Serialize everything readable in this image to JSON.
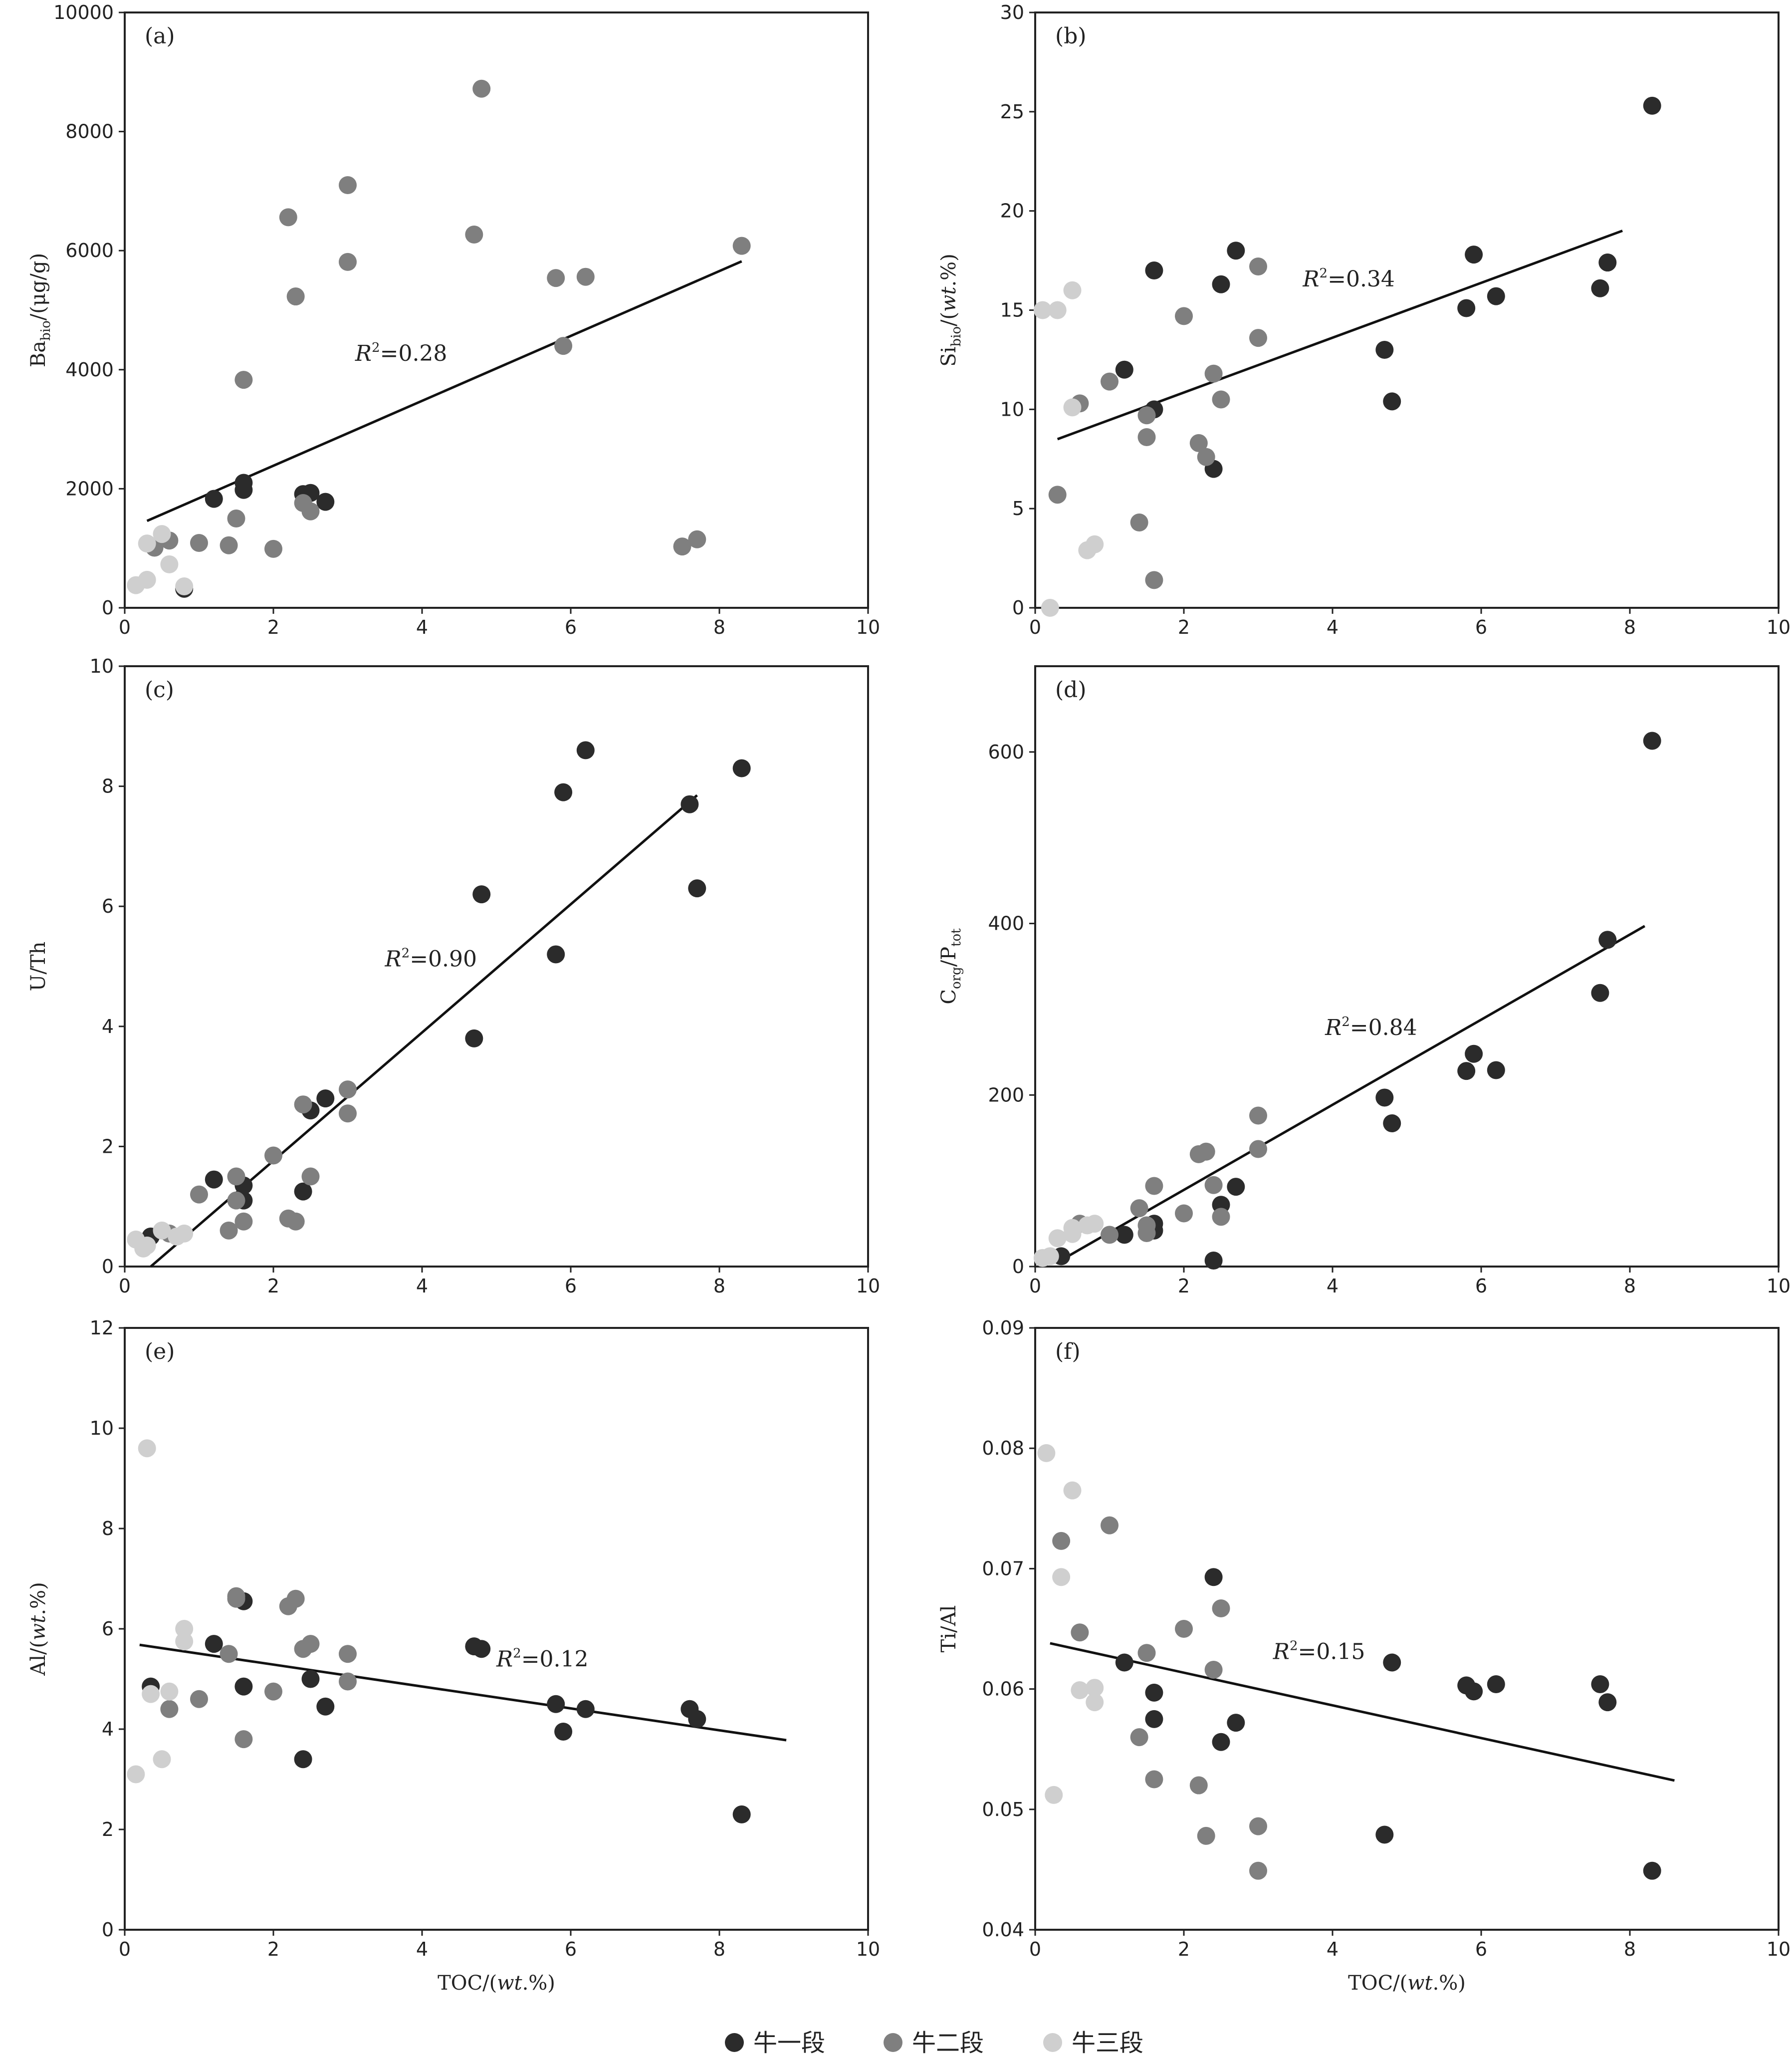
{
  "colors": {
    "牛一段": "#2b2b2b",
    "牛二段": "#7f7f7f",
    "牛三段": "#cfcfcf"
  },
  "legend": [
    "牛一段",
    "牛二段",
    "牛三段"
  ],
  "chart_data": [
    {
      "type": "scatter",
      "panel": "(a)",
      "xlabel": "TOC/(wt.%)",
      "ylabel": "Babio/(μg/g)",
      "xlim": [
        0,
        10
      ],
      "ylim": [
        0,
        10000
      ],
      "xticks": [
        0,
        2,
        4,
        6,
        8,
        10
      ],
      "yticks": [
        0,
        2000,
        4000,
        6000,
        8000,
        10000
      ],
      "r2": "R²=0.28",
      "r2_pos": [
        3.1,
        4150
      ],
      "fit": [
        [
          0.3,
          1460
        ],
        [
          8.3,
          5820
        ]
      ],
      "series": [
        {
          "name": "牛一段",
          "points": [
            [
              1.2,
              1830
            ],
            [
              1.6,
              2100
            ],
            [
              1.6,
              1980
            ],
            [
              2.4,
              1910
            ],
            [
              2.5,
              1930
            ],
            [
              2.7,
              1780
            ],
            [
              0.8,
              320
            ]
          ]
        },
        {
          "name": "牛二段",
          "points": [
            [
              4.8,
              8720
            ],
            [
              3.0,
              7100
            ],
            [
              2.2,
              6560
            ],
            [
              4.7,
              6270
            ],
            [
              8.3,
              6080
            ],
            [
              3.0,
              5810
            ],
            [
              5.8,
              5540
            ],
            [
              6.2,
              5560
            ],
            [
              2.3,
              5230
            ],
            [
              5.9,
              4400
            ],
            [
              1.6,
              3830
            ],
            [
              2.4,
              1760
            ],
            [
              2.5,
              1620
            ],
            [
              1.5,
              1500
            ],
            [
              1.4,
              1050
            ],
            [
              1.0,
              1090
            ],
            [
              0.6,
              1130
            ],
            [
              0.4,
              1010
            ],
            [
              2.0,
              990
            ],
            [
              7.5,
              1030
            ],
            [
              7.7,
              1150
            ]
          ]
        },
        {
          "name": "牛三段",
          "points": [
            [
              0.5,
              1240
            ],
            [
              0.3,
              1080
            ],
            [
              0.6,
              730
            ],
            [
              0.3,
              470
            ],
            [
              0.15,
              380
            ],
            [
              0.8,
              360
            ]
          ]
        }
      ]
    },
    {
      "type": "scatter",
      "panel": "(b)",
      "xlabel": "TOC/(wt.%)",
      "ylabel": "Sibio/(wt.%)",
      "xlim": [
        0,
        10
      ],
      "ylim": [
        0,
        30
      ],
      "xticks": [
        0,
        2,
        4,
        6,
        8,
        10
      ],
      "yticks": [
        0,
        5,
        10,
        15,
        20,
        25,
        30
      ],
      "r2": "R²=0.34",
      "r2_pos": [
        3.6,
        16.2
      ],
      "fit": [
        [
          0.3,
          8.5
        ],
        [
          7.9,
          19.0
        ]
      ],
      "series": [
        {
          "name": "牛一段",
          "points": [
            [
              8.3,
              25.3
            ],
            [
              2.7,
              18.0
            ],
            [
              5.9,
              17.8
            ],
            [
              7.7,
              17.4
            ],
            [
              1.6,
              17.0
            ],
            [
              2.5,
              16.3
            ],
            [
              7.6,
              16.1
            ],
            [
              6.2,
              15.7
            ],
            [
              5.8,
              15.1
            ],
            [
              4.7,
              13.0
            ],
            [
              1.2,
              12.0
            ],
            [
              4.8,
              10.4
            ],
            [
              1.6,
              10.0
            ],
            [
              2.4,
              7.0
            ]
          ]
        },
        {
          "name": "牛二段",
          "points": [
            [
              3.0,
              17.2
            ],
            [
              2.0,
              14.7
            ],
            [
              3.0,
              13.6
            ],
            [
              2.4,
              11.8
            ],
            [
              1.0,
              11.4
            ],
            [
              2.5,
              10.5
            ],
            [
              0.6,
              10.3
            ],
            [
              1.5,
              9.7
            ],
            [
              1.5,
              8.6
            ],
            [
              2.2,
              8.3
            ],
            [
              2.3,
              7.6
            ],
            [
              0.3,
              5.7
            ],
            [
              1.4,
              4.3
            ],
            [
              1.6,
              1.4
            ]
          ]
        },
        {
          "name": "牛三段",
          "points": [
            [
              0.5,
              16.0
            ],
            [
              0.1,
              15.0
            ],
            [
              0.3,
              15.0
            ],
            [
              0.5,
              10.1
            ],
            [
              0.8,
              3.2
            ],
            [
              0.7,
              2.9
            ],
            [
              0.2,
              0.0
            ]
          ]
        }
      ]
    },
    {
      "type": "scatter",
      "panel": "(c)",
      "xlabel": "TOC/(wt.%)",
      "ylabel": "U/Th",
      "xlim": [
        0,
        10
      ],
      "ylim": [
        0,
        10
      ],
      "xticks": [
        0,
        2,
        4,
        6,
        8,
        10
      ],
      "yticks": [
        0,
        2,
        4,
        6,
        8,
        10
      ],
      "r2": "R²=0.90",
      "r2_pos": [
        3.5,
        5.0
      ],
      "fit": [
        [
          0.35,
          0.0
        ],
        [
          7.7,
          7.85
        ]
      ],
      "series": [
        {
          "name": "牛一段",
          "points": [
            [
              6.2,
              8.6
            ],
            [
              8.3,
              8.3
            ],
            [
              5.9,
              7.9
            ],
            [
              7.6,
              7.7
            ],
            [
              7.7,
              6.3
            ],
            [
              4.8,
              6.2
            ],
            [
              5.8,
              5.2
            ],
            [
              4.7,
              3.8
            ],
            [
              2.7,
              2.8
            ],
            [
              2.5,
              2.6
            ],
            [
              1.2,
              1.45
            ],
            [
              1.6,
              1.35
            ],
            [
              1.6,
              1.1
            ],
            [
              2.4,
              1.25
            ],
            [
              0.35,
              0.5
            ]
          ]
        },
        {
          "name": "牛二段",
          "points": [
            [
              3.0,
              2.95
            ],
            [
              2.4,
              2.7
            ],
            [
              3.0,
              2.55
            ],
            [
              2.0,
              1.85
            ],
            [
              1.5,
              1.5
            ],
            [
              2.5,
              1.5
            ],
            [
              1.0,
              1.2
            ],
            [
              1.5,
              1.1
            ],
            [
              1.6,
              0.75
            ],
            [
              2.2,
              0.8
            ],
            [
              2.3,
              0.75
            ],
            [
              1.4,
              0.6
            ],
            [
              0.6,
              0.55
            ]
          ]
        },
        {
          "name": "牛三段",
          "points": [
            [
              0.15,
              0.45
            ],
            [
              0.5,
              0.6
            ],
            [
              0.8,
              0.55
            ],
            [
              0.7,
              0.5
            ],
            [
              0.3,
              0.35
            ],
            [
              0.25,
              0.3
            ]
          ]
        }
      ]
    },
    {
      "type": "scatter",
      "panel": "(d)",
      "xlabel": "TOC/(wt.%)",
      "ylabel": "Corg/Ptot",
      "xlim": [
        0,
        10
      ],
      "ylim": [
        0,
        700
      ],
      "xticks": [
        0,
        2,
        4,
        6,
        8,
        10
      ],
      "yticks": [
        0,
        200,
        400,
        600
      ],
      "r2": "R²=0.84",
      "r2_pos": [
        3.9,
        270
      ],
      "fit": [
        [
          0.3,
          5
        ],
        [
          8.2,
          397
        ]
      ],
      "series": [
        {
          "name": "牛一段",
          "points": [
            [
              8.3,
              613
            ],
            [
              7.7,
              381
            ],
            [
              7.6,
              319
            ],
            [
              5.9,
              248
            ],
            [
              5.8,
              228
            ],
            [
              6.2,
              229
            ],
            [
              4.7,
              197
            ],
            [
              4.8,
              167
            ],
            [
              2.7,
              93
            ],
            [
              2.5,
              72
            ],
            [
              1.6,
              50
            ],
            [
              1.6,
              42
            ],
            [
              1.2,
              37
            ],
            [
              0.35,
              12
            ],
            [
              2.4,
              7
            ]
          ]
        },
        {
          "name": "牛二段",
          "points": [
            [
              3.0,
              176
            ],
            [
              3.0,
              137
            ],
            [
              2.3,
              134
            ],
            [
              2.2,
              131
            ],
            [
              1.6,
              94
            ],
            [
              2.4,
              95
            ],
            [
              1.4,
              68
            ],
            [
              2.0,
              62
            ],
            [
              2.5,
              58
            ],
            [
              1.5,
              48
            ],
            [
              1.5,
              39
            ],
            [
              1.0,
              37
            ],
            [
              0.6,
              50
            ]
          ]
        },
        {
          "name": "牛三段",
          "points": [
            [
              0.8,
              50
            ],
            [
              0.7,
              48
            ],
            [
              0.5,
              45
            ],
            [
              0.5,
              38
            ],
            [
              0.3,
              33
            ],
            [
              0.2,
              12
            ],
            [
              0.1,
              10
            ]
          ]
        }
      ]
    },
    {
      "type": "scatter",
      "panel": "(e)",
      "xlabel": "TOC/(wt.%)",
      "ylabel": "Al/(wt.%)",
      "xlim": [
        0,
        10
      ],
      "ylim": [
        0,
        12
      ],
      "xticks": [
        0,
        2,
        4,
        6,
        8,
        10
      ],
      "yticks": [
        0,
        2,
        4,
        6,
        8,
        10,
        12
      ],
      "r2": "R²=0.12",
      "r2_pos": [
        5.0,
        5.25
      ],
      "fit": [
        [
          0.2,
          5.68
        ],
        [
          8.9,
          3.78
        ]
      ],
      "series": [
        {
          "name": "牛一段",
          "points": [
            [
              1.2,
              5.7
            ],
            [
              1.6,
              6.55
            ],
            [
              4.7,
              5.65
            ],
            [
              4.8,
              5.6
            ],
            [
              2.5,
              5.0
            ],
            [
              1.6,
              4.85
            ],
            [
              5.8,
              4.5
            ],
            [
              6.2,
              4.4
            ],
            [
              7.6,
              4.4
            ],
            [
              7.7,
              4.2
            ],
            [
              2.7,
              4.45
            ],
            [
              5.9,
              3.95
            ],
            [
              2.4,
              3.4
            ],
            [
              8.3,
              2.3
            ],
            [
              0.35,
              4.85
            ]
          ]
        },
        {
          "name": "牛二段",
          "points": [
            [
              1.5,
              6.6
            ],
            [
              1.5,
              6.65
            ],
            [
              2.3,
              6.6
            ],
            [
              2.2,
              6.45
            ],
            [
              2.5,
              5.7
            ],
            [
              2.4,
              5.6
            ],
            [
              1.4,
              5.5
            ],
            [
              3.0,
              5.5
            ],
            [
              3.0,
              4.95
            ],
            [
              2.0,
              4.75
            ],
            [
              1.0,
              4.6
            ],
            [
              0.6,
              4.4
            ],
            [
              1.6,
              3.8
            ]
          ]
        },
        {
          "name": "牛三段",
          "points": [
            [
              0.3,
              9.6
            ],
            [
              0.8,
              6.0
            ],
            [
              0.8,
              5.75
            ],
            [
              0.6,
              4.75
            ],
            [
              0.35,
              4.7
            ],
            [
              0.5,
              3.4
            ],
            [
              0.15,
              3.1
            ]
          ]
        }
      ]
    },
    {
      "type": "scatter",
      "panel": "(f)",
      "xlabel": "TOC/(wt.%)",
      "ylabel": "Ti/Al",
      "xlim": [
        0,
        10
      ],
      "ylim": [
        0.04,
        0.09
      ],
      "xticks": [
        0,
        2,
        4,
        6,
        8,
        10
      ],
      "yticks": [
        0.04,
        0.05,
        0.06,
        0.07,
        0.08,
        0.09
      ],
      "r2": "R²=0.15",
      "r2_pos": [
        3.2,
        0.0625
      ],
      "fit": [
        [
          0.2,
          0.0638
        ],
        [
          8.6,
          0.0524
        ]
      ],
      "series": [
        {
          "name": "牛一段",
          "points": [
            [
              2.4,
              0.0693
            ],
            [
              4.8,
              0.0622
            ],
            [
              1.2,
              0.0622
            ],
            [
              6.2,
              0.0604
            ],
            [
              5.8,
              0.0603
            ],
            [
              7.6,
              0.0604
            ],
            [
              5.9,
              0.0598
            ],
            [
              1.6,
              0.0597
            ],
            [
              7.7,
              0.0589
            ],
            [
              1.6,
              0.0575
            ],
            [
              2.7,
              0.0572
            ],
            [
              2.5,
              0.0556
            ],
            [
              4.7,
              0.0479
            ],
            [
              8.3,
              0.0449
            ]
          ]
        },
        {
          "name": "牛二段",
          "points": [
            [
              1.0,
              0.0736
            ],
            [
              0.35,
              0.0723
            ],
            [
              2.5,
              0.0667
            ],
            [
              2.0,
              0.065
            ],
            [
              0.6,
              0.0647
            ],
            [
              1.5,
              0.063
            ],
            [
              2.4,
              0.0616
            ],
            [
              1.4,
              0.056
            ],
            [
              1.6,
              0.0525
            ],
            [
              2.2,
              0.052
            ],
            [
              3.0,
              0.0486
            ],
            [
              2.3,
              0.0478
            ],
            [
              3.0,
              0.0449
            ]
          ]
        },
        {
          "name": "牛三段",
          "points": [
            [
              0.15,
              0.0796
            ],
            [
              0.5,
              0.0765
            ],
            [
              0.35,
              0.0693
            ],
            [
              0.6,
              0.0599
            ],
            [
              0.8,
              0.0601
            ],
            [
              0.8,
              0.0589
            ],
            [
              0.25,
              0.0512
            ]
          ]
        }
      ]
    }
  ]
}
